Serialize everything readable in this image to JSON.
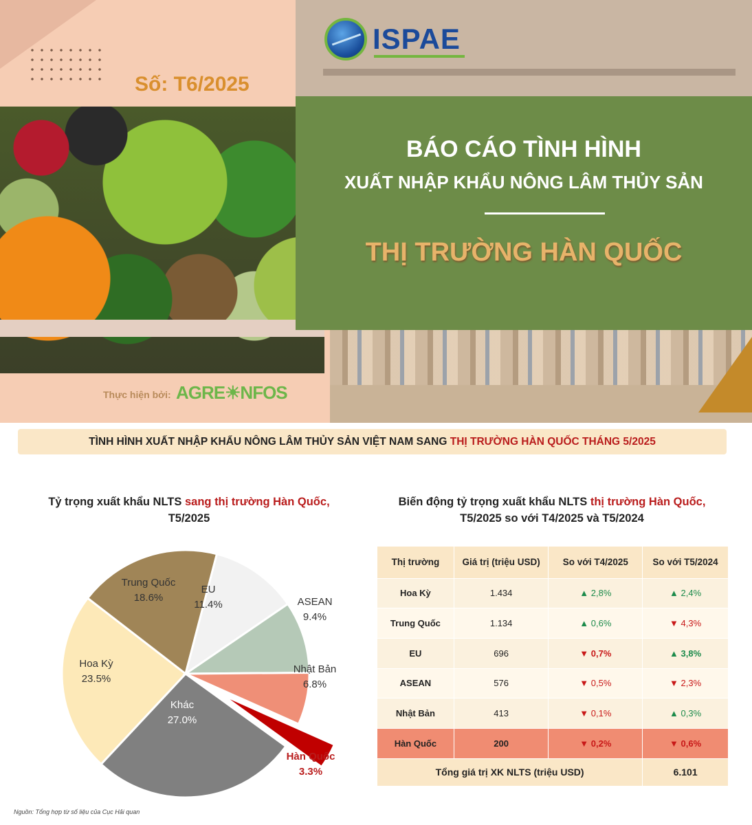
{
  "header": {
    "logo_text": "ISPAE",
    "issue": "Số: T6/2025",
    "title_line1": "BÁO CÁO TÌNH HÌNH",
    "title_line2": "XUẤT NHẬP KHẨU NÔNG LÂM THỦY SẢN",
    "title_market": "THỊ TRƯỜNG HÀN QUỐC",
    "credit_label": "Thực hiện bởi:",
    "credit_brand": "AGRE☀NFOS"
  },
  "banner": {
    "text_black": "TÌNH HÌNH XUẤT NHẬP KHẨU NÔNG LÂM THỦY SẢN VIỆT NAM SANG ",
    "text_red": "THỊ TRƯỜNG HÀN QUỐC THÁNG 5/2025"
  },
  "pie_section": {
    "title_black": "Tỷ trọng xuất khẩu NLTS ",
    "title_red": "sang thị trường Hàn Quốc,",
    "title_line2": "T5/2025"
  },
  "table_section": {
    "title_black": "Biến động tỷ trọng xuất khẩu NLTS ",
    "title_red": "thị trường Hàn Quốc,",
    "title_line2": "T5/2025 so với T4/2025 và T5/2024"
  },
  "chart_data": {
    "type": "pie",
    "title": "Tỷ trọng xuất khẩu NLTS sang thị trường Hàn Quốc, T5/2025",
    "labels": [
      "Hàn Quốc",
      "Khác",
      "Hoa Kỳ",
      "Trung Quốc",
      "EU",
      "ASEAN",
      "Nhật Bản"
    ],
    "values": [
      3.3,
      27.0,
      23.5,
      18.6,
      11.4,
      9.4,
      6.8
    ],
    "value_labels": [
      "3.3%",
      "27.0%",
      "23.5%",
      "18.6%",
      "11.4%",
      "9.4%",
      "6.8%"
    ],
    "colors": [
      "#c00000",
      "#808080",
      "#fde9b8",
      "#a08557",
      "#f2f2f2",
      "#b5c9b7",
      "#ef8f77"
    ],
    "exploded": [
      "Hàn Quốc"
    ]
  },
  "table": {
    "headers": [
      "Thị trường",
      "Giá trị (triệu USD)",
      "So với T4/2025",
      "So với T5/2024"
    ],
    "rows": [
      {
        "market": "Hoa Kỳ",
        "value": "1.434",
        "vs_t4": "▲ 2,8%",
        "vs_t4_dir": "up",
        "vs_t5": "▲ 2,4%",
        "vs_t5_dir": "up"
      },
      {
        "market": "Trung Quốc",
        "value": "1.134",
        "vs_t4": "▲ 0,6%",
        "vs_t4_dir": "up",
        "vs_t5": "▼ 4,3%",
        "vs_t5_dir": "dn"
      },
      {
        "market": "EU",
        "value": "696",
        "vs_t4": "▼ 0,7%",
        "vs_t4_dir": "dn",
        "vs_t5": "▲ 3,8%",
        "vs_t5_dir": "up"
      },
      {
        "market": "ASEAN",
        "value": "576",
        "vs_t4": "▼ 0,5%",
        "vs_t4_dir": "dn",
        "vs_t5": "▼ 2,3%",
        "vs_t5_dir": "dn"
      },
      {
        "market": "Nhật Bản",
        "value": "413",
        "vs_t4": "▼ 0,1%",
        "vs_t4_dir": "dn",
        "vs_t5": "▲ 0,3%",
        "vs_t5_dir": "up"
      },
      {
        "market": "Hàn Quốc",
        "value": "200",
        "vs_t4": "▼ 0,2%",
        "vs_t4_dir": "dn",
        "vs_t5": "▼ 0,6%",
        "vs_t5_dir": "dn"
      }
    ],
    "total_label": "Tổng giá trị XK NLTS (triệu USD)",
    "total_value": "6.101"
  },
  "source": "Nguồn: Tổng hợp từ số liệu của Cục Hải quan"
}
